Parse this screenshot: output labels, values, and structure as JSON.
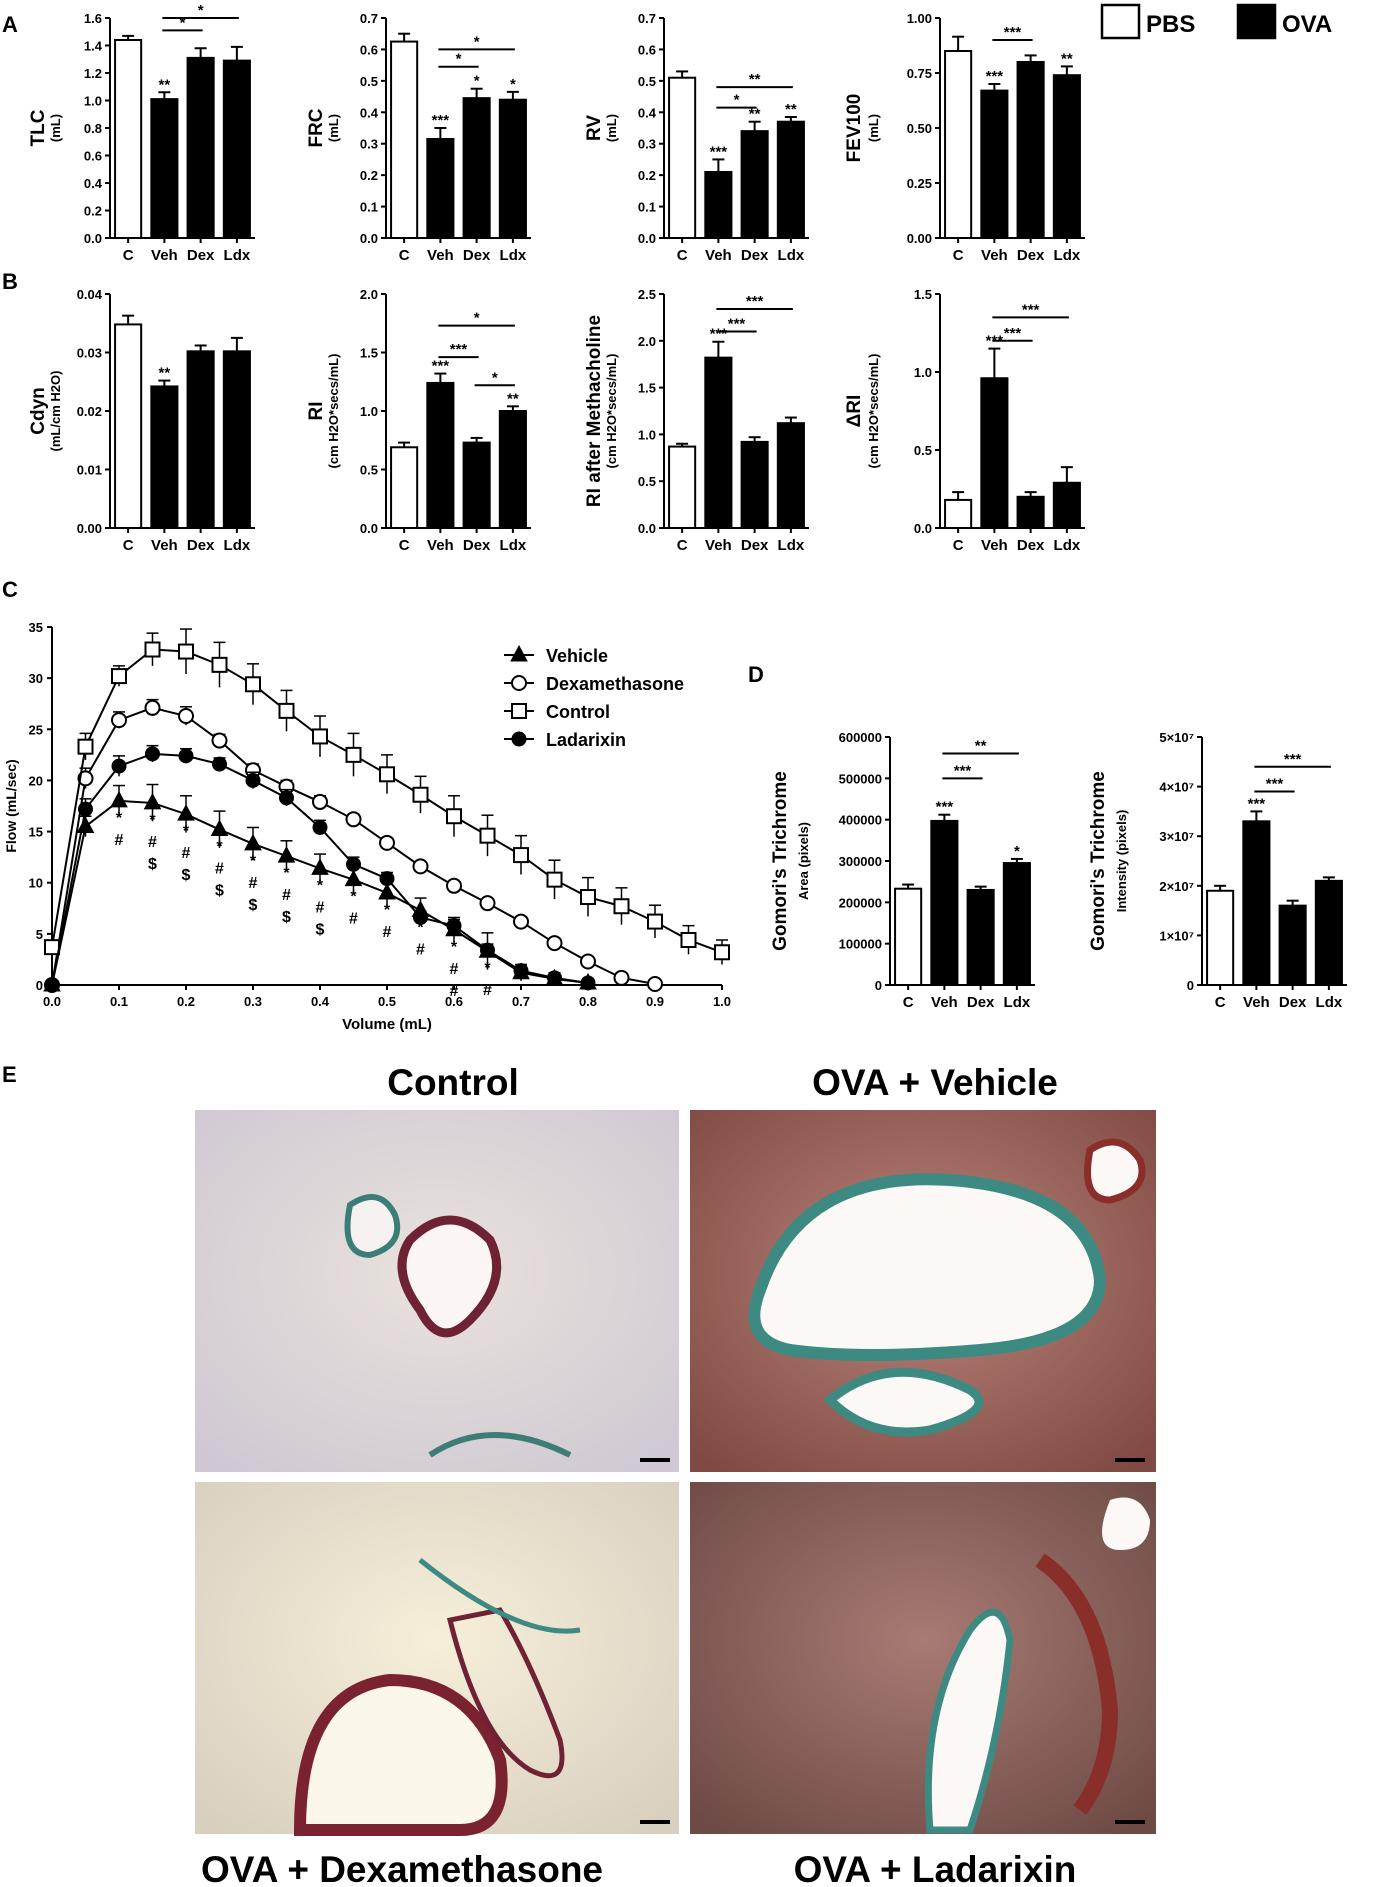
{
  "legend_top": {
    "items": [
      {
        "label": "PBS",
        "color": "#ffffff"
      },
      {
        "label": "OVA",
        "color": "#000000"
      }
    ]
  },
  "panels": {
    "A": "A",
    "B": "B",
    "C": "C",
    "D": "D",
    "E": "E"
  },
  "histology": {
    "top_left": "Control",
    "top_right": "OVA + Vehicle",
    "bottom_left": "OVA + Dexamethasone",
    "bottom_right": "OVA + Ladarixin"
  },
  "chart_data": [
    {
      "id": "tlc",
      "panel": "A",
      "type": "bar",
      "ylabel": "TLC",
      "yunit": "(mL)",
      "ylim": [
        0,
        1.6
      ],
      "yticks": [
        "0.0",
        "0.2",
        "0.4",
        "0.6",
        "0.8",
        "1.0",
        "1.2",
        "1.4",
        "1.6"
      ],
      "categories": [
        "C",
        "Veh",
        "Dex",
        "Ldx"
      ],
      "values": [
        1.44,
        1.01,
        1.31,
        1.29
      ],
      "errors": [
        0.03,
        0.05,
        0.07,
        0.1
      ],
      "fills": [
        "#ffffff",
        "#000000",
        "#000000",
        "#000000"
      ],
      "bar_stars": [
        "",
        "**",
        "",
        ""
      ],
      "brackets": [
        {
          "from": 1,
          "to": 2,
          "label": "*",
          "y": 1.51
        },
        {
          "from": 1,
          "to": 3,
          "label": "*",
          "y": 1.6
        }
      ]
    },
    {
      "id": "frc",
      "panel": "A",
      "type": "bar",
      "ylabel": "FRC",
      "yunit": "(mL)",
      "ylim": [
        0,
        0.7
      ],
      "yticks": [
        "0.0",
        "0.1",
        "0.2",
        "0.3",
        "0.4",
        "0.5",
        "0.6",
        "0.7"
      ],
      "categories": [
        "C",
        "Veh",
        "Dex",
        "Ldx"
      ],
      "values": [
        0.625,
        0.315,
        0.445,
        0.44
      ],
      "errors": [
        0.025,
        0.035,
        0.03,
        0.025
      ],
      "fills": [
        "#ffffff",
        "#000000",
        "#000000",
        "#000000"
      ],
      "bar_stars": [
        "",
        "***",
        "*",
        "*"
      ],
      "brackets": [
        {
          "from": 1,
          "to": 2,
          "label": "*",
          "y": 0.545
        },
        {
          "from": 1,
          "to": 3,
          "label": "*",
          "y": 0.6
        }
      ]
    },
    {
      "id": "rv",
      "panel": "A",
      "type": "bar",
      "ylabel": "RV",
      "yunit": "(mL)",
      "ylim": [
        0,
        0.7
      ],
      "yticks": [
        "0.0",
        "0.1",
        "0.2",
        "0.3",
        "0.4",
        "0.5",
        "0.6",
        "0.7"
      ],
      "categories": [
        "C",
        "Veh",
        "Dex",
        "Ldx"
      ],
      "values": [
        0.51,
        0.21,
        0.34,
        0.37
      ],
      "errors": [
        0.02,
        0.04,
        0.03,
        0.015
      ],
      "fills": [
        "#ffffff",
        "#000000",
        "#000000",
        "#000000"
      ],
      "bar_stars": [
        "",
        "***",
        "**",
        "**"
      ],
      "brackets": [
        {
          "from": 1,
          "to": 2,
          "label": "*",
          "y": 0.415
        },
        {
          "from": 1,
          "to": 3,
          "label": "**",
          "y": 0.48
        }
      ]
    },
    {
      "id": "fev100",
      "panel": "A",
      "type": "bar",
      "ylabel": "FEV100",
      "yunit": "(mL)",
      "ylim": [
        0,
        1.0
      ],
      "yticks": [
        "0.00",
        "0.25",
        "0.50",
        "0.75",
        "1.00"
      ],
      "categories": [
        "C",
        "Veh",
        "Dex",
        "Ldx"
      ],
      "values": [
        0.85,
        0.67,
        0.8,
        0.74
      ],
      "errors": [
        0.065,
        0.03,
        0.03,
        0.04
      ],
      "fills": [
        "#ffffff",
        "#000000",
        "#000000",
        "#000000"
      ],
      "bar_stars": [
        "",
        "***",
        "",
        "**"
      ],
      "brackets": [
        {
          "from": 1,
          "to": 2,
          "label": "***",
          "y": 0.9
        }
      ]
    },
    {
      "id": "cdyn",
      "panel": "B",
      "type": "bar",
      "ylabel": "Cdyn",
      "yunit": "(mL/cm H2O)",
      "ylim": [
        0,
        0.04
      ],
      "yticks": [
        "0.00",
        "0.01",
        "0.02",
        "0.03",
        "0.04"
      ],
      "categories": [
        "C",
        "Veh",
        "Dex",
        "Ldx"
      ],
      "values": [
        0.0348,
        0.0242,
        0.0302,
        0.0302
      ],
      "errors": [
        0.0015,
        0.001,
        0.001,
        0.0023
      ],
      "fills": [
        "#ffffff",
        "#000000",
        "#000000",
        "#000000"
      ],
      "bar_stars": [
        "",
        "**",
        "",
        ""
      ],
      "brackets": []
    },
    {
      "id": "ri",
      "panel": "B",
      "type": "bar",
      "ylabel": "RI",
      "yunit": "(cm H2O*secs/mL)",
      "ylim": [
        0,
        2.0
      ],
      "yticks": [
        "0.0",
        "0.5",
        "1.0",
        "1.5",
        "2.0"
      ],
      "categories": [
        "C",
        "Veh",
        "Dex",
        "Ldx"
      ],
      "values": [
        0.69,
        1.24,
        0.73,
        1.0
      ],
      "errors": [
        0.04,
        0.08,
        0.04,
        0.04
      ],
      "fills": [
        "#ffffff",
        "#000000",
        "#000000",
        "#000000"
      ],
      "bar_stars": [
        "",
        "***",
        "",
        "**"
      ],
      "brackets": [
        {
          "from": 1,
          "to": 2,
          "label": "***",
          "y": 1.46
        },
        {
          "from": 2,
          "to": 3,
          "label": "*",
          "y": 1.22
        },
        {
          "from": 1,
          "to": 3,
          "label": "*",
          "y": 1.73
        }
      ]
    },
    {
      "id": "ri_mch",
      "panel": "B",
      "type": "bar",
      "ylabel": "RI after Methacholine",
      "yunit": "(cm H2O*secs/mL)",
      "ylim": [
        0,
        2.5
      ],
      "yticks": [
        "0.0",
        "0.5",
        "1.0",
        "1.5",
        "2.0",
        "2.5"
      ],
      "categories": [
        "C",
        "Veh",
        "Dex",
        "Ldx"
      ],
      "values": [
        0.87,
        1.82,
        0.92,
        1.12
      ],
      "errors": [
        0.03,
        0.17,
        0.05,
        0.06
      ],
      "fills": [
        "#ffffff",
        "#000000",
        "#000000",
        "#000000"
      ],
      "bar_stars": [
        "",
        "***",
        "",
        ""
      ],
      "brackets": [
        {
          "from": 1,
          "to": 2,
          "label": "***",
          "y": 2.1
        },
        {
          "from": 1,
          "to": 3,
          "label": "***",
          "y": 2.34
        }
      ]
    },
    {
      "id": "delta_ri",
      "panel": "B",
      "type": "bar",
      "ylabel": "ΔRI",
      "yunit": "(cm H2O*secs/mL)",
      "ylim": [
        0,
        1.5
      ],
      "yticks": [
        "0.0",
        "0.5",
        "1.0",
        "1.5"
      ],
      "categories": [
        "C",
        "Veh",
        "Dex",
        "Ldx"
      ],
      "values": [
        0.18,
        0.96,
        0.2,
        0.29
      ],
      "errors": [
        0.05,
        0.19,
        0.03,
        0.1
      ],
      "fills": [
        "#ffffff",
        "#000000",
        "#000000",
        "#000000"
      ],
      "bar_stars": [
        "",
        "***",
        "",
        ""
      ],
      "brackets": [
        {
          "from": 1,
          "to": 2,
          "label": "***",
          "y": 1.2
        },
        {
          "from": 1,
          "to": 3,
          "label": "***",
          "y": 1.35
        }
      ]
    },
    {
      "id": "flow_volume",
      "panel": "C",
      "type": "line",
      "xlabel": "Volume (mL)",
      "ylabel": "Flow (mL/sec)",
      "xlim": [
        0,
        1.0
      ],
      "ylim": [
        0,
        35
      ],
      "xticks": [
        "0.0",
        "0.1",
        "0.2",
        "0.3",
        "0.4",
        "0.5",
        "0.6",
        "0.7",
        "0.8",
        "0.9",
        "1.0"
      ],
      "yticks": [
        "0",
        "5",
        "10",
        "15",
        "20",
        "25",
        "30",
        "35"
      ],
      "series": [
        {
          "name": "Vehicle",
          "marker": "triangle-filled",
          "x": [
            0,
            0.05,
            0.1,
            0.15,
            0.2,
            0.25,
            0.3,
            0.35,
            0.4,
            0.45,
            0.5,
            0.55,
            0.6,
            0.65,
            0.7,
            0.75,
            0.8
          ],
          "y": [
            0,
            15.5,
            18,
            17.8,
            16.7,
            15.2,
            13.8,
            12.6,
            11.4,
            10.3,
            9.0,
            7.3,
            5.4,
            3.3,
            1.2,
            0.6,
            0.2
          ],
          "err": [
            0,
            1.0,
            1.5,
            1.8,
            1.8,
            1.8,
            1.6,
            1.5,
            1.4,
            1.3,
            1.2,
            1.2,
            1.2,
            1.8,
            0.8,
            0.6,
            0.4
          ]
        },
        {
          "name": "Dexamethasone",
          "marker": "circle-open",
          "x": [
            0,
            0.05,
            0.1,
            0.15,
            0.2,
            0.25,
            0.3,
            0.35,
            0.4,
            0.45,
            0.5,
            0.55,
            0.6,
            0.65,
            0.7,
            0.75,
            0.8,
            0.85,
            0.9
          ],
          "y": [
            0,
            20.2,
            25.9,
            27.1,
            26.3,
            23.9,
            21.0,
            19.4,
            17.9,
            16.2,
            13.9,
            11.6,
            9.7,
            8.0,
            6.2,
            4.1,
            2.3,
            0.7,
            0.1
          ],
          "err": [
            0,
            1.0,
            0.8,
            0.8,
            0.9,
            0.6,
            0.6,
            0.6,
            0.6,
            0.5,
            0.4,
            0.4,
            0.4,
            0.3,
            0.3,
            0.3,
            0.3,
            0.2,
            0.1
          ]
        },
        {
          "name": "Control",
          "marker": "square-open",
          "x": [
            0,
            0.05,
            0.1,
            0.15,
            0.2,
            0.25,
            0.3,
            0.35,
            0.4,
            0.45,
            0.5,
            0.55,
            0.6,
            0.65,
            0.7,
            0.75,
            0.8,
            0.85,
            0.9,
            0.95,
            1.0
          ],
          "y": [
            3.7,
            23.3,
            30.2,
            32.8,
            32.6,
            31.3,
            29.4,
            26.8,
            24.3,
            22.5,
            20.6,
            18.6,
            16.5,
            14.6,
            12.7,
            10.3,
            8.6,
            7.7,
            6.2,
            4.4,
            3.2
          ],
          "err": [
            0.5,
            1.3,
            1.0,
            1.6,
            2.2,
            2.2,
            2.0,
            2.0,
            2.0,
            2.1,
            1.9,
            1.8,
            2.0,
            2.0,
            1.9,
            1.9,
            1.9,
            1.8,
            1.6,
            1.4,
            1.2
          ]
        },
        {
          "name": "Ladarixin",
          "marker": "circle-filled",
          "x": [
            0,
            0.05,
            0.1,
            0.15,
            0.2,
            0.25,
            0.3,
            0.35,
            0.4,
            0.45,
            0.5,
            0.55,
            0.6,
            0.65,
            0.7,
            0.75,
            0.8
          ],
          "y": [
            0,
            17.2,
            21.4,
            22.6,
            22.4,
            21.6,
            20.0,
            18.3,
            15.4,
            11.8,
            10.4,
            6.6,
            5.8,
            3.4,
            1.4,
            0.7,
            0.2
          ],
          "err": [
            0,
            1.0,
            1.0,
            0.8,
            0.7,
            0.6,
            0.8,
            0.8,
            0.7,
            0.7,
            0.6,
            0.6,
            0.6,
            0.6,
            0.6,
            0.3,
            0.2
          ]
        }
      ],
      "annotations": [
        {
          "x": 0.1,
          "symbols": [
            "*",
            "#"
          ]
        },
        {
          "x": 0.15,
          "symbols": [
            "*",
            "#",
            "$"
          ]
        },
        {
          "x": 0.2,
          "symbols": [
            "*",
            "#",
            "$"
          ]
        },
        {
          "x": 0.25,
          "symbols": [
            "*",
            "#",
            "$"
          ]
        },
        {
          "x": 0.3,
          "symbols": [
            "*",
            "#",
            "$"
          ]
        },
        {
          "x": 0.35,
          "symbols": [
            "*",
            "#",
            "$"
          ]
        },
        {
          "x": 0.4,
          "symbols": [
            "*",
            "#",
            "$"
          ]
        },
        {
          "x": 0.45,
          "symbols": [
            "*",
            "#"
          ]
        },
        {
          "x": 0.5,
          "symbols": [
            "*",
            "#"
          ]
        },
        {
          "x": 0.55,
          "symbols": [
            "*",
            "#"
          ]
        },
        {
          "x": 0.6,
          "symbols": [
            "*",
            "#",
            "#"
          ]
        },
        {
          "x": 0.65,
          "symbols": [
            "*",
            "#"
          ]
        }
      ]
    },
    {
      "id": "gomori_area",
      "panel": "D",
      "type": "bar",
      "ylabel": "Gomori's Trichrome",
      "yunit": "Area (pixels)",
      "ylim": [
        0,
        600000
      ],
      "yticks": [
        "0",
        "100000",
        "200000",
        "300000",
        "400000",
        "500000",
        "600000"
      ],
      "categories": [
        "C",
        "Veh",
        "Dex",
        "Ldx"
      ],
      "values": [
        233000,
        397000,
        230000,
        295000
      ],
      "errors": [
        10000,
        15000,
        8000,
        10000
      ],
      "fills": [
        "#ffffff",
        "#000000",
        "#000000",
        "#000000"
      ],
      "bar_stars": [
        "",
        "***",
        "",
        "*"
      ],
      "brackets": [
        {
          "from": 1,
          "to": 2,
          "label": "***",
          "y": 500000
        },
        {
          "from": 1,
          "to": 3,
          "label": "**",
          "y": 560000
        }
      ]
    },
    {
      "id": "gomori_intensity",
      "panel": "D",
      "type": "bar",
      "ylabel": "Gomori's Trichrome",
      "yunit": "Intensity (pixels)",
      "ylim": [
        0,
        50000000
      ],
      "yticks": [
        "0",
        "1×10⁷",
        "2×10⁷",
        "3×10⁷",
        "4×10⁷",
        "5×10⁷"
      ],
      "categories": [
        "C",
        "Veh",
        "Dex",
        "Ldx"
      ],
      "values": [
        19000000,
        33000000,
        16000000,
        21000000
      ],
      "errors": [
        1000000,
        2000000,
        1000000,
        700000
      ],
      "fills": [
        "#ffffff",
        "#000000",
        "#000000",
        "#000000"
      ],
      "bar_stars": [
        "",
        "***",
        "",
        ""
      ],
      "brackets": [
        {
          "from": 1,
          "to": 2,
          "label": "***",
          "y": 39000000
        },
        {
          "from": 1,
          "to": 3,
          "label": "***",
          "y": 44000000
        }
      ]
    }
  ]
}
